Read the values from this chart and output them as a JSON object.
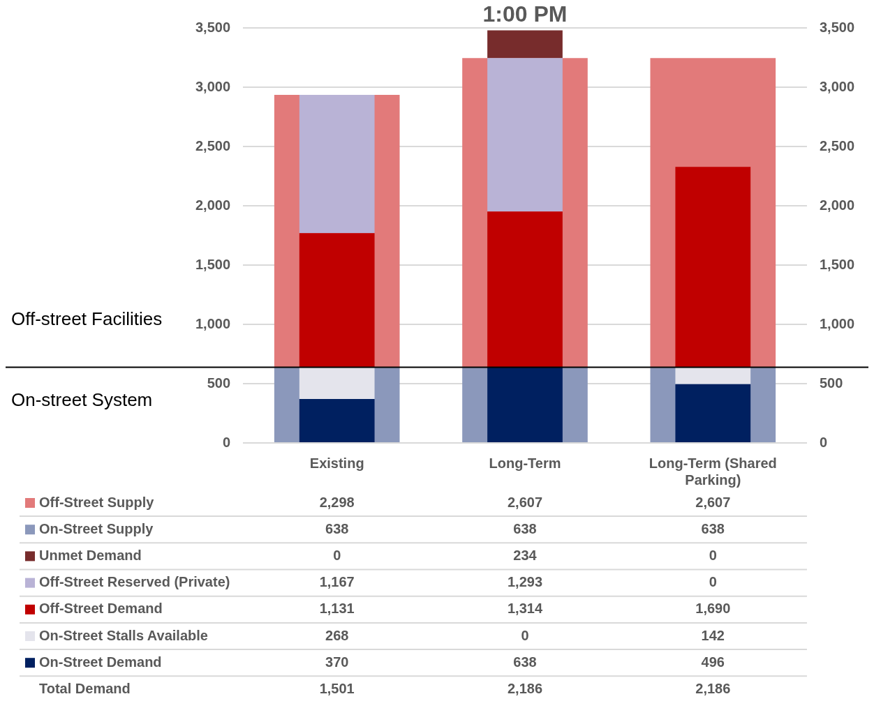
{
  "chart_data": {
    "type": "bar",
    "title": "1:00 PM",
    "categories": [
      "Existing",
      "Long-Term",
      "Long-Term (Shared Parking)"
    ],
    "series": [
      {
        "name": "On-Street Demand",
        "color": "#002060",
        "values": [
          370,
          638,
          496
        ],
        "base": [
          0,
          0,
          0
        ],
        "value_labels": [
          "370",
          "638",
          "496"
        ]
      },
      {
        "name": "On-Street Stalls Available",
        "color": "#e4e4ec",
        "values": [
          268,
          0,
          142
        ],
        "base": [
          370,
          null,
          496
        ],
        "value_labels": [
          "268",
          "0",
          "142"
        ]
      },
      {
        "name": "Off-Street Demand",
        "color": "#c00000",
        "values": [
          1131,
          1314,
          1690
        ],
        "base": [
          638,
          638,
          638
        ],
        "value_labels": [
          "1,131",
          "1,314",
          "1,690"
        ]
      },
      {
        "name": "Off-Street Reserved (Private)",
        "color": "#b9b3d6",
        "values": [
          1167,
          1293,
          0
        ],
        "base": [
          1769,
          1952,
          null
        ],
        "value_labels": [
          "1,167",
          "1,293",
          "0"
        ]
      },
      {
        "name": "Unmet Demand",
        "color": "#772c2c",
        "values": [
          0,
          234,
          0
        ],
        "base": [
          null,
          3245,
          null
        ],
        "value_labels": [
          "0",
          "234",
          "0"
        ]
      },
      {
        "name": "On-Street Supply",
        "color": "#8b98bb",
        "values": [
          638,
          638,
          638
        ],
        "base": [
          0,
          0,
          0
        ],
        "value_labels": [
          "638",
          "638",
          "638"
        ]
      },
      {
        "name": "Off-Street Supply",
        "color": "#e27a7a",
        "values": [
          2298,
          2607,
          2607
        ],
        "base": [
          638,
          638,
          638
        ],
        "value_labels": [
          "2,298",
          "2,607",
          "2,607"
        ]
      }
    ],
    "ylim": [
      0,
      3500
    ],
    "yticks": [
      0,
      500,
      {
        "value": 1000,
        "label": "1,000"
      },
      {
        "value": 1500,
        "label": "1,500"
      },
      {
        "value": 2000,
        "label": "2,000"
      },
      {
        "value": 2500,
        "label": "2,500"
      },
      {
        "value": 3000,
        "label": "3,000"
      },
      {
        "value": 3500,
        "label": "3,500"
      }
    ],
    "y2lim": [
      0,
      3500
    ],
    "y2ticks": [
      0,
      500,
      {
        "value": 1000,
        "label": "1,000"
      },
      {
        "value": 1500,
        "label": "1,500"
      },
      {
        "value": 2000,
        "label": "2,000"
      },
      {
        "value": 2500,
        "label": "2,500"
      },
      {
        "value": 3000,
        "label": "3,000"
      },
      {
        "value": 3500,
        "label": "3,500"
      }
    ],
    "grid": "y",
    "legend": "bottom",
    "ref_lines": [
      {
        "axis": "y",
        "value": 638,
        "color": "#000000"
      }
    ],
    "annotations": [
      "Off-street Facilities",
      "On-street System",
      "Total Demand",
      "1,501",
      "2,186",
      "2,186"
    ]
  }
}
